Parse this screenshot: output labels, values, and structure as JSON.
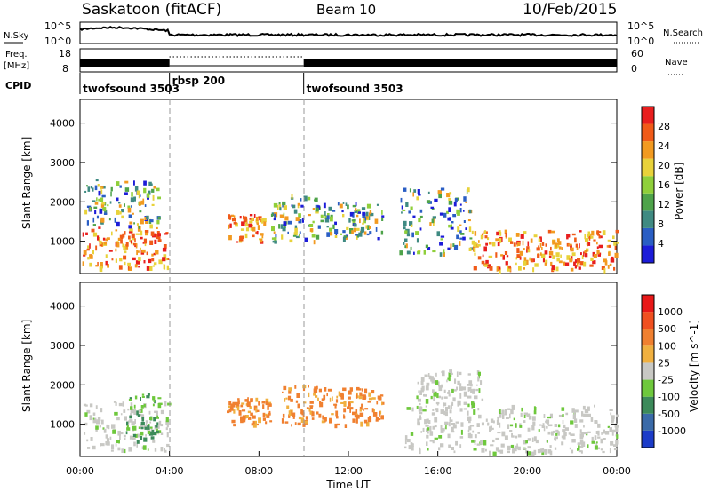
{
  "header": {
    "title": "Saskatoon (fitACF)",
    "beam": "Beam 10",
    "date": "10/Feb/2015"
  },
  "strip_panels": {
    "nsky_label": "N.Sky",
    "nsky_ticks": [
      "10^5",
      "10^0"
    ],
    "nsearch_label": "N.Search",
    "nsearch_ticks": [
      "10^5",
      "10^0"
    ],
    "freq_label_1": "Freq.",
    "freq_label_2": "[MHz]",
    "freq_ticks": [
      "18",
      "8"
    ],
    "nave_label": "Nave",
    "nave_ticks": [
      "60",
      "0"
    ],
    "cpid_label": "CPID",
    "cpid_segments": [
      {
        "label": "twofsound 3503",
        "start_h": 0,
        "end_h": 4
      },
      {
        "label": "rbsp 200",
        "start_h": 4,
        "end_h": 10
      },
      {
        "label": "twofsound 3503",
        "start_h": 10,
        "end_h": 24
      }
    ]
  },
  "chart_data": [
    {
      "type": "heatmap",
      "title": "",
      "xlabel": "Time UT",
      "ylabel": "Slant Range [km]",
      "x_range_h": [
        0,
        24
      ],
      "ylim": [
        180,
        4600
      ],
      "y_ticks": [
        1000,
        2000,
        3000,
        4000
      ],
      "x_tick_labels": [
        "00:00",
        "04:00",
        "08:00",
        "12:00",
        "16:00",
        "20:00",
        "00:00"
      ],
      "colorbar": {
        "label": "Power [dB]",
        "ticks": [
          "28",
          "24",
          "20",
          "16",
          "12",
          "8",
          "4"
        ],
        "colors": [
          "#1c1cd8",
          "#2a5ec4",
          "#3f8a82",
          "#4ea34a",
          "#8fcf3a",
          "#e8d23a",
          "#f29a20",
          "#f05a18",
          "#e81e1e"
        ]
      },
      "regions": [
        {
          "t0": 0.1,
          "t1": 3.9,
          "r0": 350,
          "r1": 1400,
          "v": "high"
        },
        {
          "t0": 0.2,
          "t1": 3.5,
          "r0": 1400,
          "r1": 2600,
          "v": "mid"
        },
        {
          "t0": 6.5,
          "t1": 8.2,
          "r0": 1000,
          "r1": 1700,
          "v": "high"
        },
        {
          "t0": 8.5,
          "t1": 10.5,
          "r0": 1000,
          "r1": 2200,
          "v": "mid"
        },
        {
          "t0": 10.5,
          "t1": 13.5,
          "r0": 1100,
          "r1": 2000,
          "v": "mid"
        },
        {
          "t0": 14.2,
          "t1": 17.5,
          "r0": 700,
          "r1": 2400,
          "v": "mid"
        },
        {
          "t0": 17.5,
          "t1": 24,
          "r0": 300,
          "r1": 1300,
          "v": "high"
        }
      ]
    },
    {
      "type": "heatmap",
      "title": "",
      "xlabel": "Time UT",
      "ylabel": "Slant Range [km]",
      "x_range_h": [
        0,
        24
      ],
      "ylim": [
        180,
        4600
      ],
      "y_ticks": [
        1000,
        2000,
        3000,
        4000
      ],
      "x_tick_labels": [
        "00:00",
        "04:00",
        "08:00",
        "12:00",
        "16:00",
        "20:00",
        "00:00"
      ],
      "colorbar": {
        "label": "Velocity [m s^-1]",
        "ticks": [
          "1000",
          "500",
          "100",
          "25",
          "-25",
          "-100",
          "-500",
          "-1000"
        ],
        "colors": [
          "#1c3cc8",
          "#3a6aa8",
          "#3c8a5a",
          "#6ec83c",
          "#c8c8c4",
          "#f0b040",
          "#f08030",
          "#f05020",
          "#e81818"
        ]
      },
      "regions": [
        {
          "t0": 0.1,
          "t1": 3.9,
          "r0": 300,
          "r1": 1600,
          "v": "ground"
        },
        {
          "t0": 2.0,
          "t1": 3.5,
          "r0": 600,
          "r1": 1800,
          "v": "toward"
        },
        {
          "t0": 6.5,
          "t1": 8.5,
          "r0": 1000,
          "r1": 1700,
          "v": "away"
        },
        {
          "t0": 9.0,
          "t1": 13.5,
          "r0": 1000,
          "r1": 2000,
          "v": "away"
        },
        {
          "t0": 14.5,
          "t1": 24,
          "r0": 300,
          "r1": 1500,
          "v": "ground"
        },
        {
          "t0": 15.0,
          "t1": 18.0,
          "r0": 1500,
          "r1": 2400,
          "v": "ground"
        }
      ]
    }
  ]
}
